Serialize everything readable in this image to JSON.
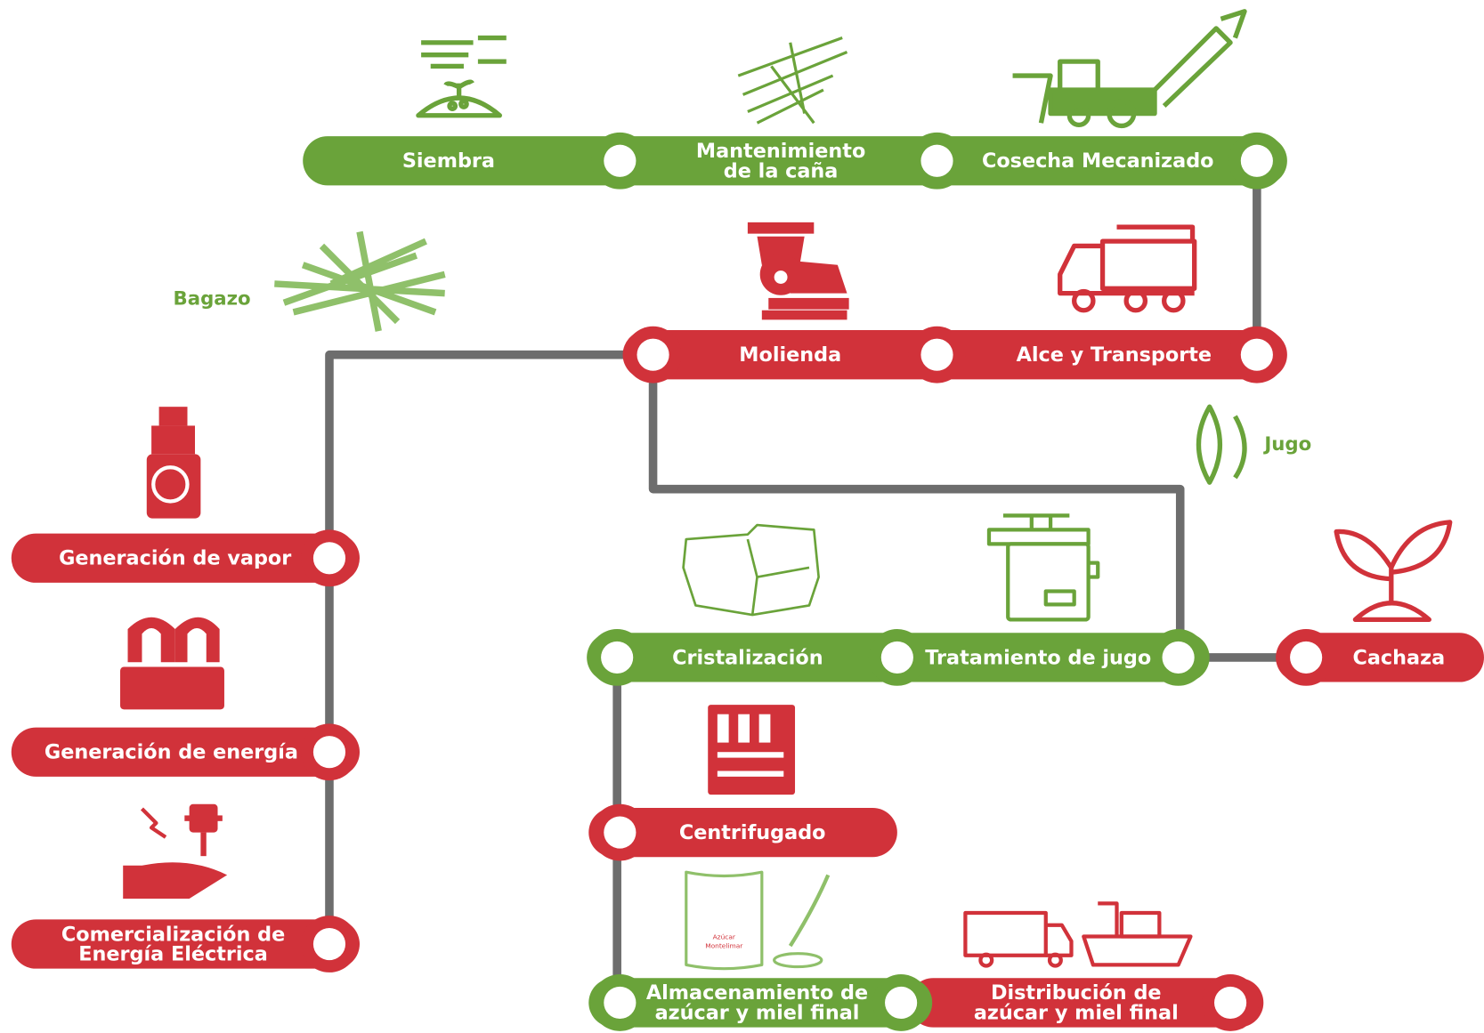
{
  "steps": [
    {
      "label": [
        "Siembra"
      ]
    },
    {
      "label": [
        "Mantenimiento",
        "de la caña"
      ]
    },
    {
      "label": [
        "Cosecha Mecanizado"
      ]
    },
    {
      "label": [
        "Molienda"
      ]
    },
    {
      "label": [
        "Alce y Transporte"
      ]
    },
    {
      "label": [
        "Generación de vapor"
      ]
    },
    {
      "label": [
        "Generación de energía"
      ]
    },
    {
      "label": [
        "Comercialización de",
        "Energía Eléctrica"
      ]
    },
    {
      "label": [
        "Cristalización"
      ]
    },
    {
      "label": [
        "Tratamiento de jugo"
      ]
    },
    {
      "label": [
        "Cachaza"
      ]
    },
    {
      "label": [
        "Centrifugado"
      ]
    },
    {
      "label": [
        "Almacenamiento de",
        "azúcar y miel final"
      ]
    },
    {
      "label": [
        "Distribución de",
        "azúcar y miel final"
      ]
    }
  ],
  "byproducts": [
    {
      "label": "Bagazo"
    },
    {
      "label": "Jugo"
    }
  ],
  "package_text": [
    "Azúcar",
    "Montelimar"
  ]
}
